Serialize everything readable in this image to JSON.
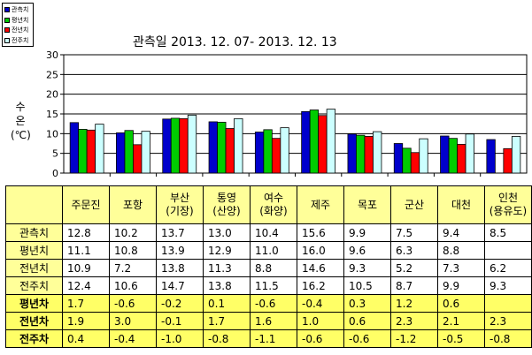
{
  "chart_data": {
    "type": "bar",
    "title": "관측일 2013. 12. 07-  2013. 12. 13",
    "ylabel": [
      "수",
      "온",
      "(℃)"
    ],
    "ylim": [
      0,
      30
    ],
    "yticks": [
      0,
      5,
      10,
      15,
      20,
      25,
      30
    ],
    "legend_position": "top-left",
    "categories": [
      [
        "주문진"
      ],
      [
        "포항"
      ],
      [
        "부산",
        "(기장)"
      ],
      [
        "통영",
        "(산양)"
      ],
      [
        "여수",
        "(화양)"
      ],
      [
        "제주"
      ],
      [
        "목포"
      ],
      [
        "군산"
      ],
      [
        "대천"
      ],
      [
        "인천",
        "(용유도)"
      ]
    ],
    "series": [
      {
        "name": "관측치",
        "color": "#0000cc",
        "values": [
          12.8,
          10.2,
          13.7,
          13.0,
          10.4,
          15.6,
          9.9,
          7.5,
          9.4,
          8.5
        ]
      },
      {
        "name": "평년치",
        "color": "#00cc00",
        "values": [
          11.1,
          10.8,
          13.9,
          12.9,
          11.0,
          16.0,
          9.6,
          6.3,
          8.8,
          null
        ]
      },
      {
        "name": "전년치",
        "color": "#ff0000",
        "values": [
          10.9,
          7.2,
          13.8,
          11.3,
          8.8,
          14.6,
          9.3,
          5.2,
          7.3,
          6.2
        ]
      },
      {
        "name": "전주치",
        "color": "#ccffff",
        "values": [
          12.4,
          10.6,
          14.7,
          13.8,
          11.5,
          16.2,
          10.5,
          8.7,
          9.9,
          9.3
        ]
      }
    ],
    "table_rows": [
      {
        "label": "관측치",
        "values": [
          "12.8",
          "10.2",
          "13.7",
          "13.0",
          "10.4",
          "15.6",
          "9.9",
          "7.5",
          "9.4",
          "8.5"
        ]
      },
      {
        "label": "평년치",
        "values": [
          "11.1",
          "10.8",
          "13.9",
          "12.9",
          "11.0",
          "16.0",
          "9.6",
          "6.3",
          "8.8",
          ""
        ]
      },
      {
        "label": "전년치",
        "values": [
          "10.9",
          "7.2",
          "13.8",
          "11.3",
          "8.8",
          "14.6",
          "9.3",
          "5.2",
          "7.3",
          "6.2"
        ]
      },
      {
        "label": "전주치",
        "values": [
          "12.4",
          "10.6",
          "14.7",
          "13.8",
          "11.5",
          "16.2",
          "10.5",
          "8.7",
          "9.9",
          "9.3"
        ]
      },
      {
        "label": "평년차",
        "values": [
          "1.7",
          "-0.6",
          "-0.2",
          "0.1",
          "-0.6",
          "-0.4",
          "0.3",
          "1.2",
          "0.6",
          ""
        ]
      },
      {
        "label": "전년차",
        "values": [
          "1.9",
          "3.0",
          "-0.1",
          "1.7",
          "1.6",
          "1.0",
          "0.6",
          "2.3",
          "2.1",
          "2.3"
        ]
      },
      {
        "label": "전주차",
        "values": [
          "0.4",
          "-0.4",
          "-1.0",
          "-0.8",
          "-1.1",
          "-0.6",
          "-0.6",
          "-1.2",
          "-0.5",
          "-0.8"
        ]
      }
    ]
  },
  "colors": {
    "plot_background": "#ffffff",
    "grid": "#000000",
    "table_header_bg": "#ffff99",
    "table_diff_bg": "#ffff66"
  }
}
